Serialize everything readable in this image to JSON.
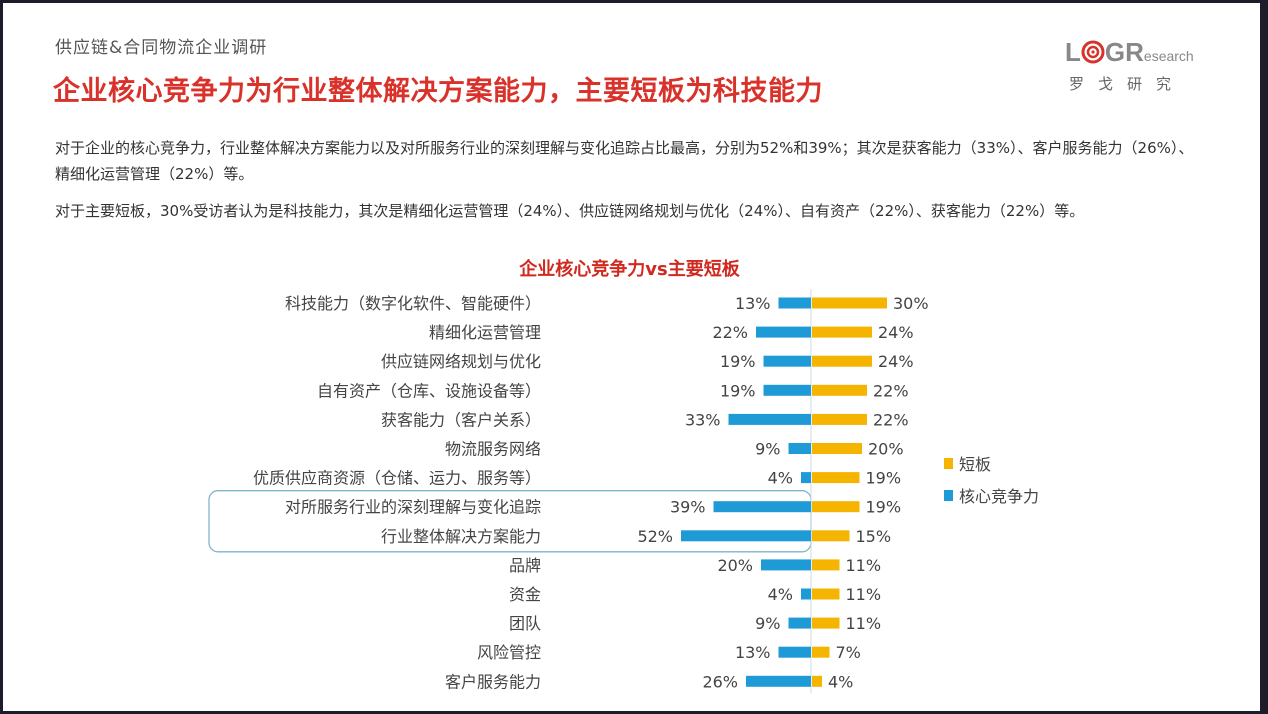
{
  "header": {
    "subtitle": "供应链&合同物流企业调研",
    "title": "企业核心竞争力为行业整体解决方案能力，主要短板为科技能力",
    "logo_text": "LOGResearch",
    "logo_cn": "罗戈研究"
  },
  "paragraphs": [
    "对于企业的核心竞争力，行业整体解决方案能力以及对所服务行业的深刻理解与变化追踪占比最高，分别为52%和39%；其次是获客能力（33%）、客户服务能力（26%）、精细化运营管理（22%）等。",
    "对于主要短板，30%受访者认为是科技能力，其次是精细化运营管理（24%）、供应链网络规划与优化（24%）、自有资产（22%）、获客能力（22%）等。"
  ],
  "chart_data": {
    "type": "bar",
    "orientation": "horizontal-diverging",
    "title": "企业核心竞争力vs主要短板",
    "categories": [
      "科技能力（数字化软件、智能硬件）",
      "精细化运营管理",
      "供应链网络规划与优化",
      "自有资产（仓库、设施设备等）",
      "获客能力（客户关系）",
      "物流服务网络",
      "优质供应商资源（仓储、运力、服务等）",
      "对所服务行业的深刻理解与变化追踪",
      "行业整体解决方案能力",
      "品牌",
      "资金",
      "团队",
      "风险管控",
      "客户服务能力"
    ],
    "series": [
      {
        "name": "核心竞争力",
        "color": "#1e9bd7",
        "side": "left",
        "values": [
          13,
          22,
          19,
          19,
          33,
          9,
          4,
          39,
          52,
          20,
          4,
          9,
          13,
          26
        ]
      },
      {
        "name": "短板",
        "color": "#f5b400",
        "side": "right",
        "values": [
          30,
          24,
          24,
          22,
          22,
          20,
          19,
          19,
          15,
          11,
          11,
          11,
          7,
          4
        ]
      }
    ],
    "unit": "%",
    "legend_position": "right",
    "legend_order": [
      "短板",
      "核心竞争力"
    ],
    "highlighted_categories": [
      "对所服务行业的深刻理解与变化追踪",
      "行业整体解决方案能力"
    ],
    "grid": false
  }
}
